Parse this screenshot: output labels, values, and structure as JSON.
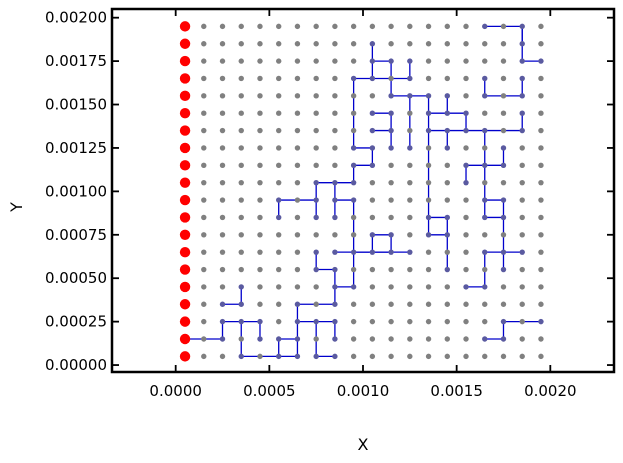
{
  "chart_data": {
    "type": "scatter",
    "xlabel": "X",
    "ylabel": "Y",
    "xlim": [
      -0.00034,
      0.00234
    ],
    "ylim": [
      -4e-05,
      0.00205
    ],
    "xticks": [
      0.0,
      0.0005,
      0.001,
      0.0015,
      0.002
    ],
    "xtick_labels": [
      "0.0000",
      "0.0005",
      "0.0010",
      "0.0015",
      "0.0020"
    ],
    "yticks": [
      0.0,
      0.00025,
      0.0005,
      0.00075,
      0.001,
      0.00125,
      0.0015,
      0.00175,
      0.002
    ],
    "ytick_labels": [
      "0.00000",
      "0.00025",
      "0.00050",
      "0.00075",
      "0.00100",
      "0.00125",
      "0.00150",
      "0.00175",
      "0.00200"
    ],
    "grid": false,
    "background_nodes": {
      "x_start": 0.00015,
      "x_step": 0.0001,
      "nx": 19,
      "y_start": 5e-05,
      "y_step": 0.0001,
      "ny": 20,
      "color": "#808080"
    },
    "boundary_nodes": {
      "x": 5e-05,
      "y": [
        5e-05,
        0.00015,
        0.00025,
        0.00035,
        0.00045,
        0.00055,
        0.00065,
        0.00075,
        0.00085,
        0.00095,
        0.00105,
        0.00115,
        0.00125,
        0.00135,
        0.00145,
        0.00155,
        0.00165,
        0.00175,
        0.00185,
        0.00195
      ],
      "color": "#ff0000"
    },
    "paths": {
      "color": "#0000cc",
      "node_color": "#5a5aa0",
      "segments": [
        [
          [
            5e-05,
            0.00015
          ],
          [
            0.00025,
            0.00015
          ],
          [
            0.00025,
            0.00025
          ],
          [
            0.00035,
            0.00025
          ],
          [
            0.00035,
            5e-05
          ],
          [
            0.00065,
            5e-05
          ],
          [
            0.00065,
            0.00025
          ],
          [
            0.00075,
            0.00025
          ],
          [
            0.00075,
            5e-05
          ],
          [
            0.00085,
            5e-05
          ]
        ],
        [
          [
            0.00025,
            0.00035
          ],
          [
            0.00035,
            0.00035
          ],
          [
            0.00035,
            0.00045
          ]
        ],
        [
          [
            0.00035,
            0.00025
          ],
          [
            0.00045,
            0.00025
          ],
          [
            0.00045,
            0.00015
          ]
        ],
        [
          [
            0.00055,
            5e-05
          ],
          [
            0.00055,
            0.00015
          ],
          [
            0.00065,
            0.00015
          ]
        ],
        [
          [
            0.00065,
            0.00025
          ],
          [
            0.00065,
            0.00035
          ],
          [
            0.00085,
            0.00035
          ],
          [
            0.00085,
            0.00045
          ],
          [
            0.00095,
            0.00045
          ],
          [
            0.00095,
            0.00065
          ],
          [
            0.00105,
            0.00065
          ],
          [
            0.00105,
            0.00075
          ]
        ],
        [
          [
            0.00075,
            0.00025
          ],
          [
            0.00085,
            0.00025
          ],
          [
            0.00085,
            0.00015
          ]
        ],
        [
          [
            0.00075,
            0.00055
          ],
          [
            0.00075,
            0.00065
          ]
        ],
        [
          [
            0.00075,
            0.00055
          ],
          [
            0.00085,
            0.00055
          ],
          [
            0.00085,
            0.00045
          ]
        ],
        [
          [
            0.00085,
            0.00065
          ],
          [
            0.00125,
            0.00065
          ]
        ],
        [
          [
            0.00095,
            0.00065
          ],
          [
            0.00095,
            0.00095
          ],
          [
            0.00085,
            0.00095
          ],
          [
            0.00085,
            0.00105
          ],
          [
            0.00095,
            0.00105
          ],
          [
            0.00095,
            0.00115
          ],
          [
            0.00105,
            0.00115
          ],
          [
            0.00105,
            0.00125
          ],
          [
            0.00095,
            0.00125
          ],
          [
            0.00095,
            0.00165
          ],
          [
            0.00105,
            0.00165
          ],
          [
            0.00105,
            0.00185
          ]
        ],
        [
          [
            0.00055,
            0.00085
          ],
          [
            0.00055,
            0.00095
          ],
          [
            0.00075,
            0.00095
          ],
          [
            0.00075,
            0.00105
          ],
          [
            0.00085,
            0.00105
          ]
        ],
        [
          [
            0.00075,
            0.00095
          ],
          [
            0.00075,
            0.00085
          ]
        ],
        [
          [
            0.00085,
            0.00095
          ],
          [
            0.00085,
            0.00085
          ]
        ],
        [
          [
            0.00105,
            0.00065
          ],
          [
            0.00115,
            0.00065
          ]
        ],
        [
          [
            0.00105,
            0.00075
          ],
          [
            0.00115,
            0.00075
          ],
          [
            0.00115,
            0.00065
          ]
        ],
        [
          [
            0.00105,
            0.00165
          ],
          [
            0.00125,
            0.00165
          ],
          [
            0.00125,
            0.00175
          ]
        ],
        [
          [
            0.00105,
            0.00175
          ],
          [
            0.00115,
            0.00175
          ],
          [
            0.00115,
            0.00155
          ],
          [
            0.00125,
            0.00155
          ],
          [
            0.00125,
            0.00125
          ]
        ],
        [
          [
            0.00105,
            0.00135
          ],
          [
            0.00115,
            0.00135
          ],
          [
            0.00115,
            0.00145
          ],
          [
            0.00105,
            0.00145
          ]
        ],
        [
          [
            0.00115,
            0.00135
          ],
          [
            0.00115,
            0.00125
          ]
        ],
        [
          [
            0.00125,
            0.00155
          ],
          [
            0.00135,
            0.00155
          ],
          [
            0.00135,
            0.00135
          ],
          [
            0.00185,
            0.00135
          ],
          [
            0.00185,
            0.00145
          ]
        ],
        [
          [
            0.00135,
            0.00145
          ],
          [
            0.00145,
            0.00145
          ],
          [
            0.00145,
            0.00155
          ]
        ],
        [
          [
            0.00135,
            0.00135
          ],
          [
            0.00135,
            0.00075
          ],
          [
            0.00145,
            0.00075
          ],
          [
            0.00145,
            0.00085
          ],
          [
            0.00135,
            0.00085
          ]
        ],
        [
          [
            0.00145,
            0.00075
          ],
          [
            0.00145,
            0.00055
          ]
        ],
        [
          [
            0.00145,
            0.00135
          ],
          [
            0.00145,
            0.00125
          ]
        ],
        [
          [
            0.00145,
            0.00145
          ],
          [
            0.00155,
            0.00145
          ],
          [
            0.00155,
            0.00135
          ]
        ],
        [
          [
            0.00155,
            0.00115
          ],
          [
            0.00165,
            0.00115
          ],
          [
            0.00165,
            0.00095
          ],
          [
            0.00175,
            0.00095
          ],
          [
            0.00175,
            0.00065
          ],
          [
            0.00185,
            0.00065
          ]
        ],
        [
          [
            0.00155,
            0.00115
          ],
          [
            0.00155,
            0.00105
          ]
        ],
        [
          [
            0.00165,
            0.00135
          ],
          [
            0.00165,
            0.00115
          ],
          [
            0.00175,
            0.00115
          ],
          [
            0.00175,
            0.00125
          ]
        ],
        [
          [
            0.00165,
            0.00095
          ],
          [
            0.00165,
            0.00085
          ],
          [
            0.00175,
            0.00085
          ]
        ],
        [
          [
            0.00165,
            0.00065
          ],
          [
            0.00175,
            0.00065
          ],
          [
            0.00175,
            0.00055
          ]
        ],
        [
          [
            0.00165,
            0.00065
          ],
          [
            0.00165,
            0.00045
          ],
          [
            0.00155,
            0.00045
          ]
        ],
        [
          [
            0.00165,
            0.00155
          ],
          [
            0.00165,
            0.00165
          ]
        ],
        [
          [
            0.00165,
            0.00155
          ],
          [
            0.00185,
            0.00155
          ],
          [
            0.00185,
            0.00165
          ]
        ],
        [
          [
            0.00165,
            0.00195
          ],
          [
            0.00185,
            0.00195
          ],
          [
            0.00185,
            0.00175
          ],
          [
            0.00195,
            0.00175
          ]
        ],
        [
          [
            0.00185,
            0.00185
          ],
          [
            0.00185,
            0.00195
          ]
        ],
        [
          [
            0.00165,
            0.00015
          ],
          [
            0.00175,
            0.00015
          ],
          [
            0.00175,
            0.00025
          ],
          [
            0.00195,
            0.00025
          ]
        ]
      ]
    }
  }
}
